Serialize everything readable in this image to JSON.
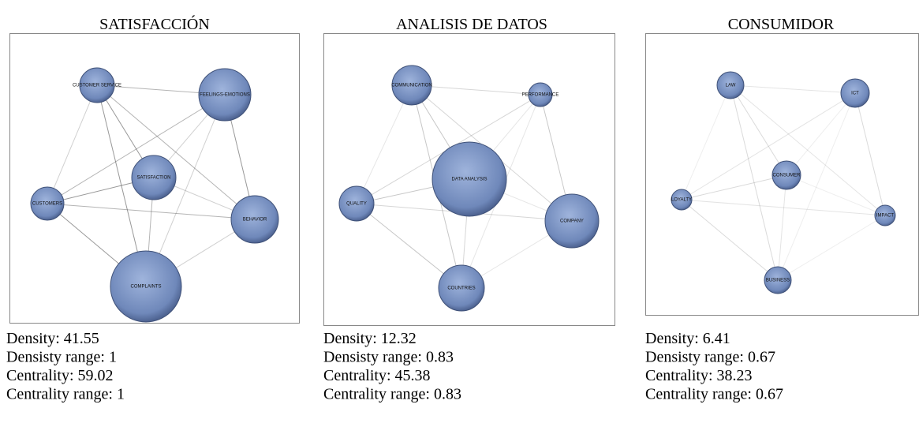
{
  "panels": [
    {
      "title": "SATISFACCIÓN",
      "nodes": [
        {
          "label": "CUSTOMER SERVICE"
        },
        {
          "label": "FEELINGS-EMOTIONS"
        },
        {
          "label": "SATISFACTION"
        },
        {
          "label": "CUSTOMERS"
        },
        {
          "label": "BEHAVIOR"
        },
        {
          "label": "COMPLAINTS"
        }
      ],
      "stats": [
        "Density: 41.55",
        "Densisty range: 1",
        "Centrality: 59.02",
        "Centrality range: 1"
      ]
    },
    {
      "title": "ANALISIS DE DATOS",
      "nodes": [
        {
          "label": "COMMUNICATION"
        },
        {
          "label": "PERFORMANCE"
        },
        {
          "label": "DATA ANALYSIS"
        },
        {
          "label": "QUALITY"
        },
        {
          "label": "COMPANY"
        },
        {
          "label": "COUNTRIES"
        }
      ],
      "stats": [
        "Density: 12.32",
        "Densisty range: 0.83",
        "Centrality: 45.38",
        "Centrality range: 0.83"
      ]
    },
    {
      "title": "CONSUMIDOR",
      "nodes": [
        {
          "label": "LAW"
        },
        {
          "label": "ICT"
        },
        {
          "label": "CONSUMER"
        },
        {
          "label": "LOYALTY"
        },
        {
          "label": "IMPACT"
        },
        {
          "label": "BUSINESS"
        }
      ],
      "stats": [
        "Density: 6.41",
        "Densisty range: 0.67",
        "Centrality: 38.23",
        "Centrality range: 0.67"
      ]
    }
  ]
}
